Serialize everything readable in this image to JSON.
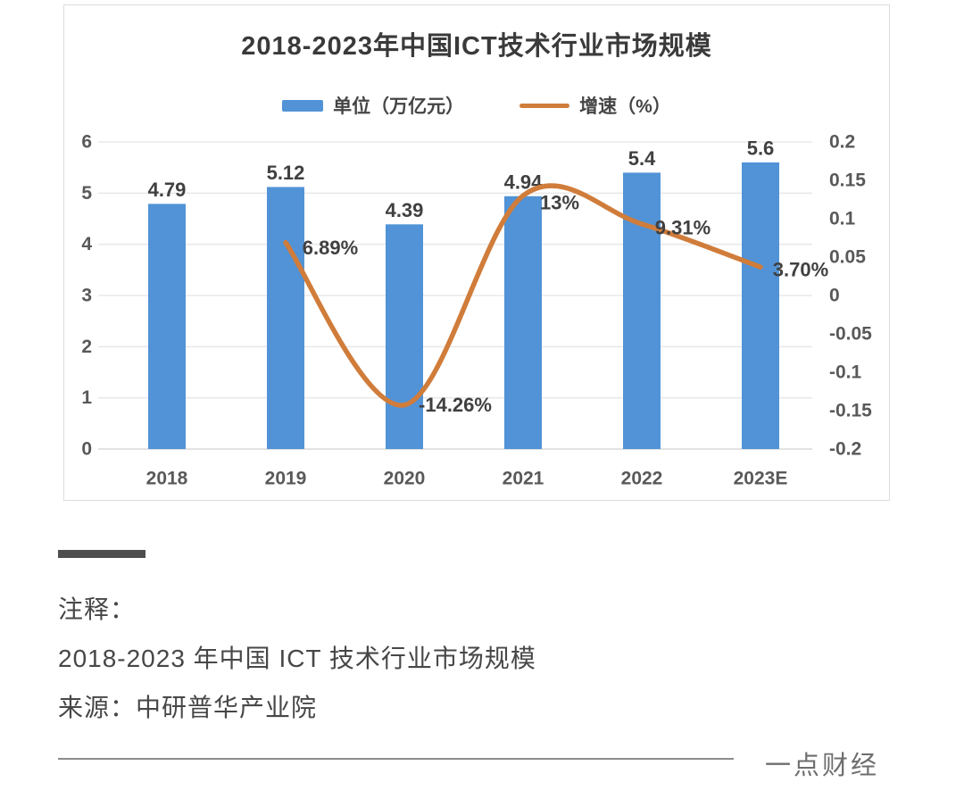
{
  "chart_data": {
    "type": "bar+line combo",
    "title": "2018-2023年中国ICT技术行业市场规模",
    "categories": [
      "2018",
      "2019",
      "2020",
      "2021",
      "2022",
      "2023E"
    ],
    "series": [
      {
        "name": "单位（万亿元）",
        "type": "bar",
        "axis": "left",
        "color": "#5193d6",
        "values": [
          4.79,
          5.12,
          4.39,
          4.94,
          5.4,
          5.6
        ],
        "labels": [
          "4.79",
          "5.12",
          "4.39",
          "4.94",
          "5.4",
          "5.6"
        ]
      },
      {
        "name": "增速（%）",
        "type": "line",
        "axis": "right",
        "color": "#d07c3a",
        "values": [
          null,
          0.0689,
          -0.1426,
          0.13,
          0.0931,
          0.037
        ],
        "labels": [
          null,
          "6.89%",
          "-14.26%",
          "13%",
          "9.31%",
          "3.70%"
        ]
      }
    ],
    "left_axis": {
      "min": 0,
      "max": 6,
      "step": 1,
      "ticks": [
        "6",
        "5",
        "4",
        "3",
        "2",
        "1",
        "0"
      ]
    },
    "right_axis": {
      "min": -0.2,
      "max": 0.2,
      "step": 0.05,
      "ticks": [
        "0.2",
        "0.15",
        "0.1",
        "0.05",
        "0",
        "-0.05",
        "-0.1",
        "-0.15",
        "-0.2"
      ]
    },
    "grid": true,
    "legend_position": "top",
    "colors": {
      "grid": "#e8e8e8",
      "baseline": "#d9d9d9",
      "tick_text": "#595959",
      "data_label": "#404040"
    }
  },
  "note": {
    "label": "注释：",
    "caption": "2018-2023 年中国 ICT 技术行业市场规模",
    "source": "来源：中研普华产业院"
  },
  "footer": {
    "brand": "一点财经"
  }
}
